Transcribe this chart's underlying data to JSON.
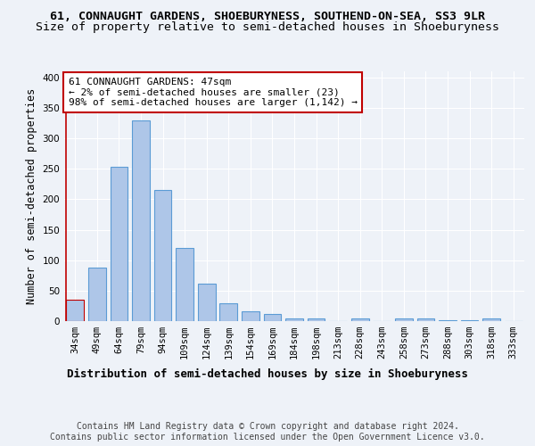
{
  "title_line1": "61, CONNAUGHT GARDENS, SHOEBURYNESS, SOUTHEND-ON-SEA, SS3 9LR",
  "title_line2": "Size of property relative to semi-detached houses in Shoeburyness",
  "xlabel": "Distribution of semi-detached houses by size in Shoeburyness",
  "ylabel": "Number of semi-detached properties",
  "footer": "Contains HM Land Registry data © Crown copyright and database right 2024.\nContains public sector information licensed under the Open Government Licence v3.0.",
  "categories": [
    "34sqm",
    "49sqm",
    "64sqm",
    "79sqm",
    "94sqm",
    "109sqm",
    "124sqm",
    "139sqm",
    "154sqm",
    "169sqm",
    "184sqm",
    "198sqm",
    "213sqm",
    "228sqm",
    "243sqm",
    "258sqm",
    "273sqm",
    "288sqm",
    "303sqm",
    "318sqm",
    "333sqm"
  ],
  "values": [
    35,
    88,
    253,
    330,
    215,
    120,
    62,
    29,
    16,
    12,
    5,
    4,
    0,
    4,
    0,
    5,
    4,
    2,
    2,
    4,
    0
  ],
  "bar_color": "#aec6e8",
  "bar_edgecolor": "#5b9bd5",
  "highlight_bar_index": 0,
  "highlight_bar_color": "#aec6e8",
  "highlight_bar_edgecolor": "#c00000",
  "annotation_text": "61 CONNAUGHT GARDENS: 47sqm\n← 2% of semi-detached houses are smaller (23)\n98% of semi-detached houses are larger (1,142) →",
  "annotation_box_edgecolor": "#c00000",
  "ylim": [
    0,
    410
  ],
  "yticks": [
    0,
    50,
    100,
    150,
    200,
    250,
    300,
    350,
    400
  ],
  "bg_color": "#eef2f8",
  "plot_bg_color": "#eef2f8",
  "title_fontsize": 9.5,
  "subtitle_fontsize": 9.5,
  "axis_label_fontsize": 8.5,
  "tick_fontsize": 7.5,
  "footer_fontsize": 7,
  "annotation_fontsize": 8
}
